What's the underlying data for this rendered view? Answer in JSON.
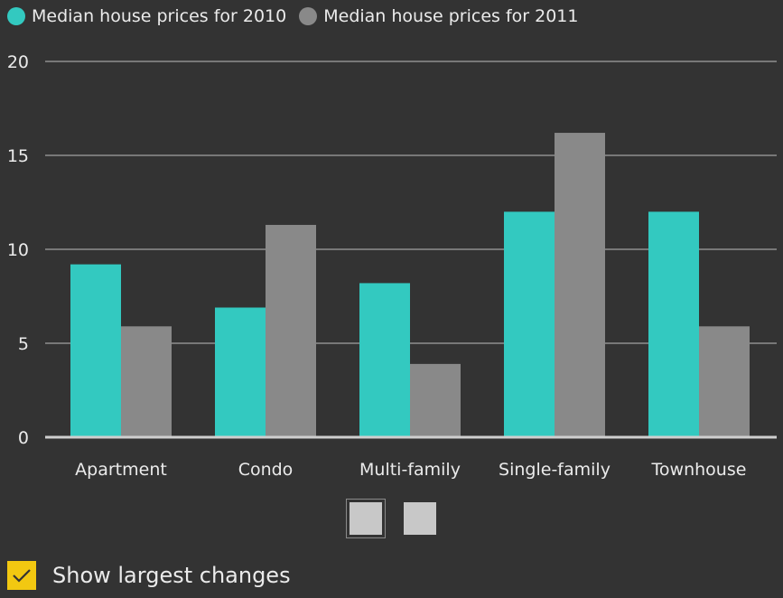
{
  "legend": {
    "items": [
      {
        "label": "Median house prices for 2010",
        "color": "#33c9c0"
      },
      {
        "label": "Median house prices for 2011",
        "color": "#898989"
      }
    ]
  },
  "chart_data": {
    "type": "bar",
    "categories": [
      "Apartment",
      "Condo",
      "Multi-family",
      "Single-family",
      "Townhouse"
    ],
    "series": [
      {
        "name": "Median house prices for 2010",
        "values": [
          9.2,
          6.9,
          8.2,
          12.0,
          12.0
        ],
        "color": "#33c9c0"
      },
      {
        "name": "Median house prices for 2011",
        "values": [
          5.9,
          11.3,
          3.9,
          16.2,
          5.9
        ],
        "color": "#898989"
      }
    ],
    "yticks": [
      "0",
      "5",
      "10",
      "15",
      "20"
    ],
    "ylim": [
      0,
      20
    ],
    "grid": true,
    "legend_position": "top-left"
  },
  "pager": {
    "pages": 2,
    "active": 1
  },
  "toggle": {
    "label": "Show largest changes",
    "checked": true,
    "color": "#f2c811"
  },
  "theme": {
    "background": "#333333",
    "text": "#ebebeb",
    "grid": "#bdbdbd"
  }
}
